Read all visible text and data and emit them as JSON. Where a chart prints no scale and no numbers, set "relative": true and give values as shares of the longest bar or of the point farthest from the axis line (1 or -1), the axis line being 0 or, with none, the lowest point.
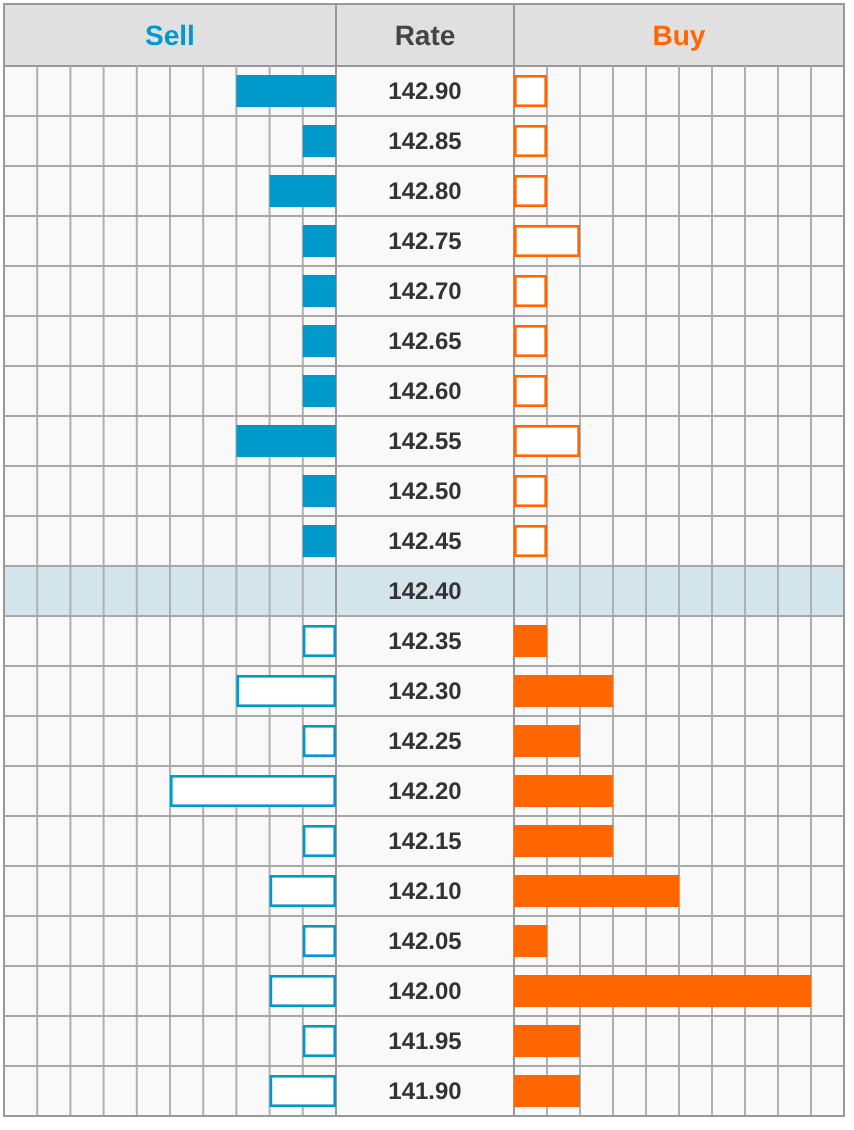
{
  "chart_data": [
    {
      "type": "bar",
      "orientation": "horizontal",
      "relative": true,
      "grid": true,
      "ylabel": "Rate",
      "categories": [
        "142.90",
        "142.85",
        "142.80",
        "142.75",
        "142.70",
        "142.65",
        "142.60",
        "142.55",
        "142.50",
        "142.45",
        "142.40",
        "142.35",
        "142.30",
        "142.25",
        "142.20",
        "142.15",
        "142.10",
        "142.05",
        "142.00",
        "141.95",
        "141.90"
      ],
      "series": [
        {
          "name": "Sell",
          "color": "#0099cc",
          "values": [
            -0.6,
            -0.2,
            -0.4,
            -0.2,
            -0.2,
            -0.2,
            -0.2,
            -0.6,
            -0.2,
            -0.2,
            null,
            -0.2,
            -0.6,
            -0.2,
            -1,
            -0.2,
            -0.4,
            -0.2,
            -0.4,
            -0.2,
            -0.4
          ]
        }
      ],
      "bands": [
        {
          "axis": "y",
          "from": "142.40",
          "to": "142.40",
          "color": "#d3e4ea"
        }
      ]
    },
    {
      "type": "bar",
      "orientation": "horizontal",
      "relative": true,
      "grid": true,
      "tick_labels": false,
      "categories": [
        "142.90",
        "142.85",
        "142.80",
        "142.75",
        "142.70",
        "142.65",
        "142.60",
        "142.55",
        "142.50",
        "142.45",
        "142.40",
        "142.35",
        "142.30",
        "142.25",
        "142.20",
        "142.15",
        "142.10",
        "142.05",
        "142.00",
        "141.95",
        "141.90"
      ],
      "series": [
        {
          "name": "Buy",
          "color": "#ff6600",
          "values": [
            0.111,
            0.111,
            0.111,
            0.222,
            0.111,
            0.111,
            0.111,
            0.222,
            0.111,
            0.111,
            null,
            0.111,
            0.333,
            0.222,
            0.333,
            0.333,
            0.556,
            0.111,
            1,
            0.222,
            0.222
          ]
        }
      ]
    }
  ]
}
